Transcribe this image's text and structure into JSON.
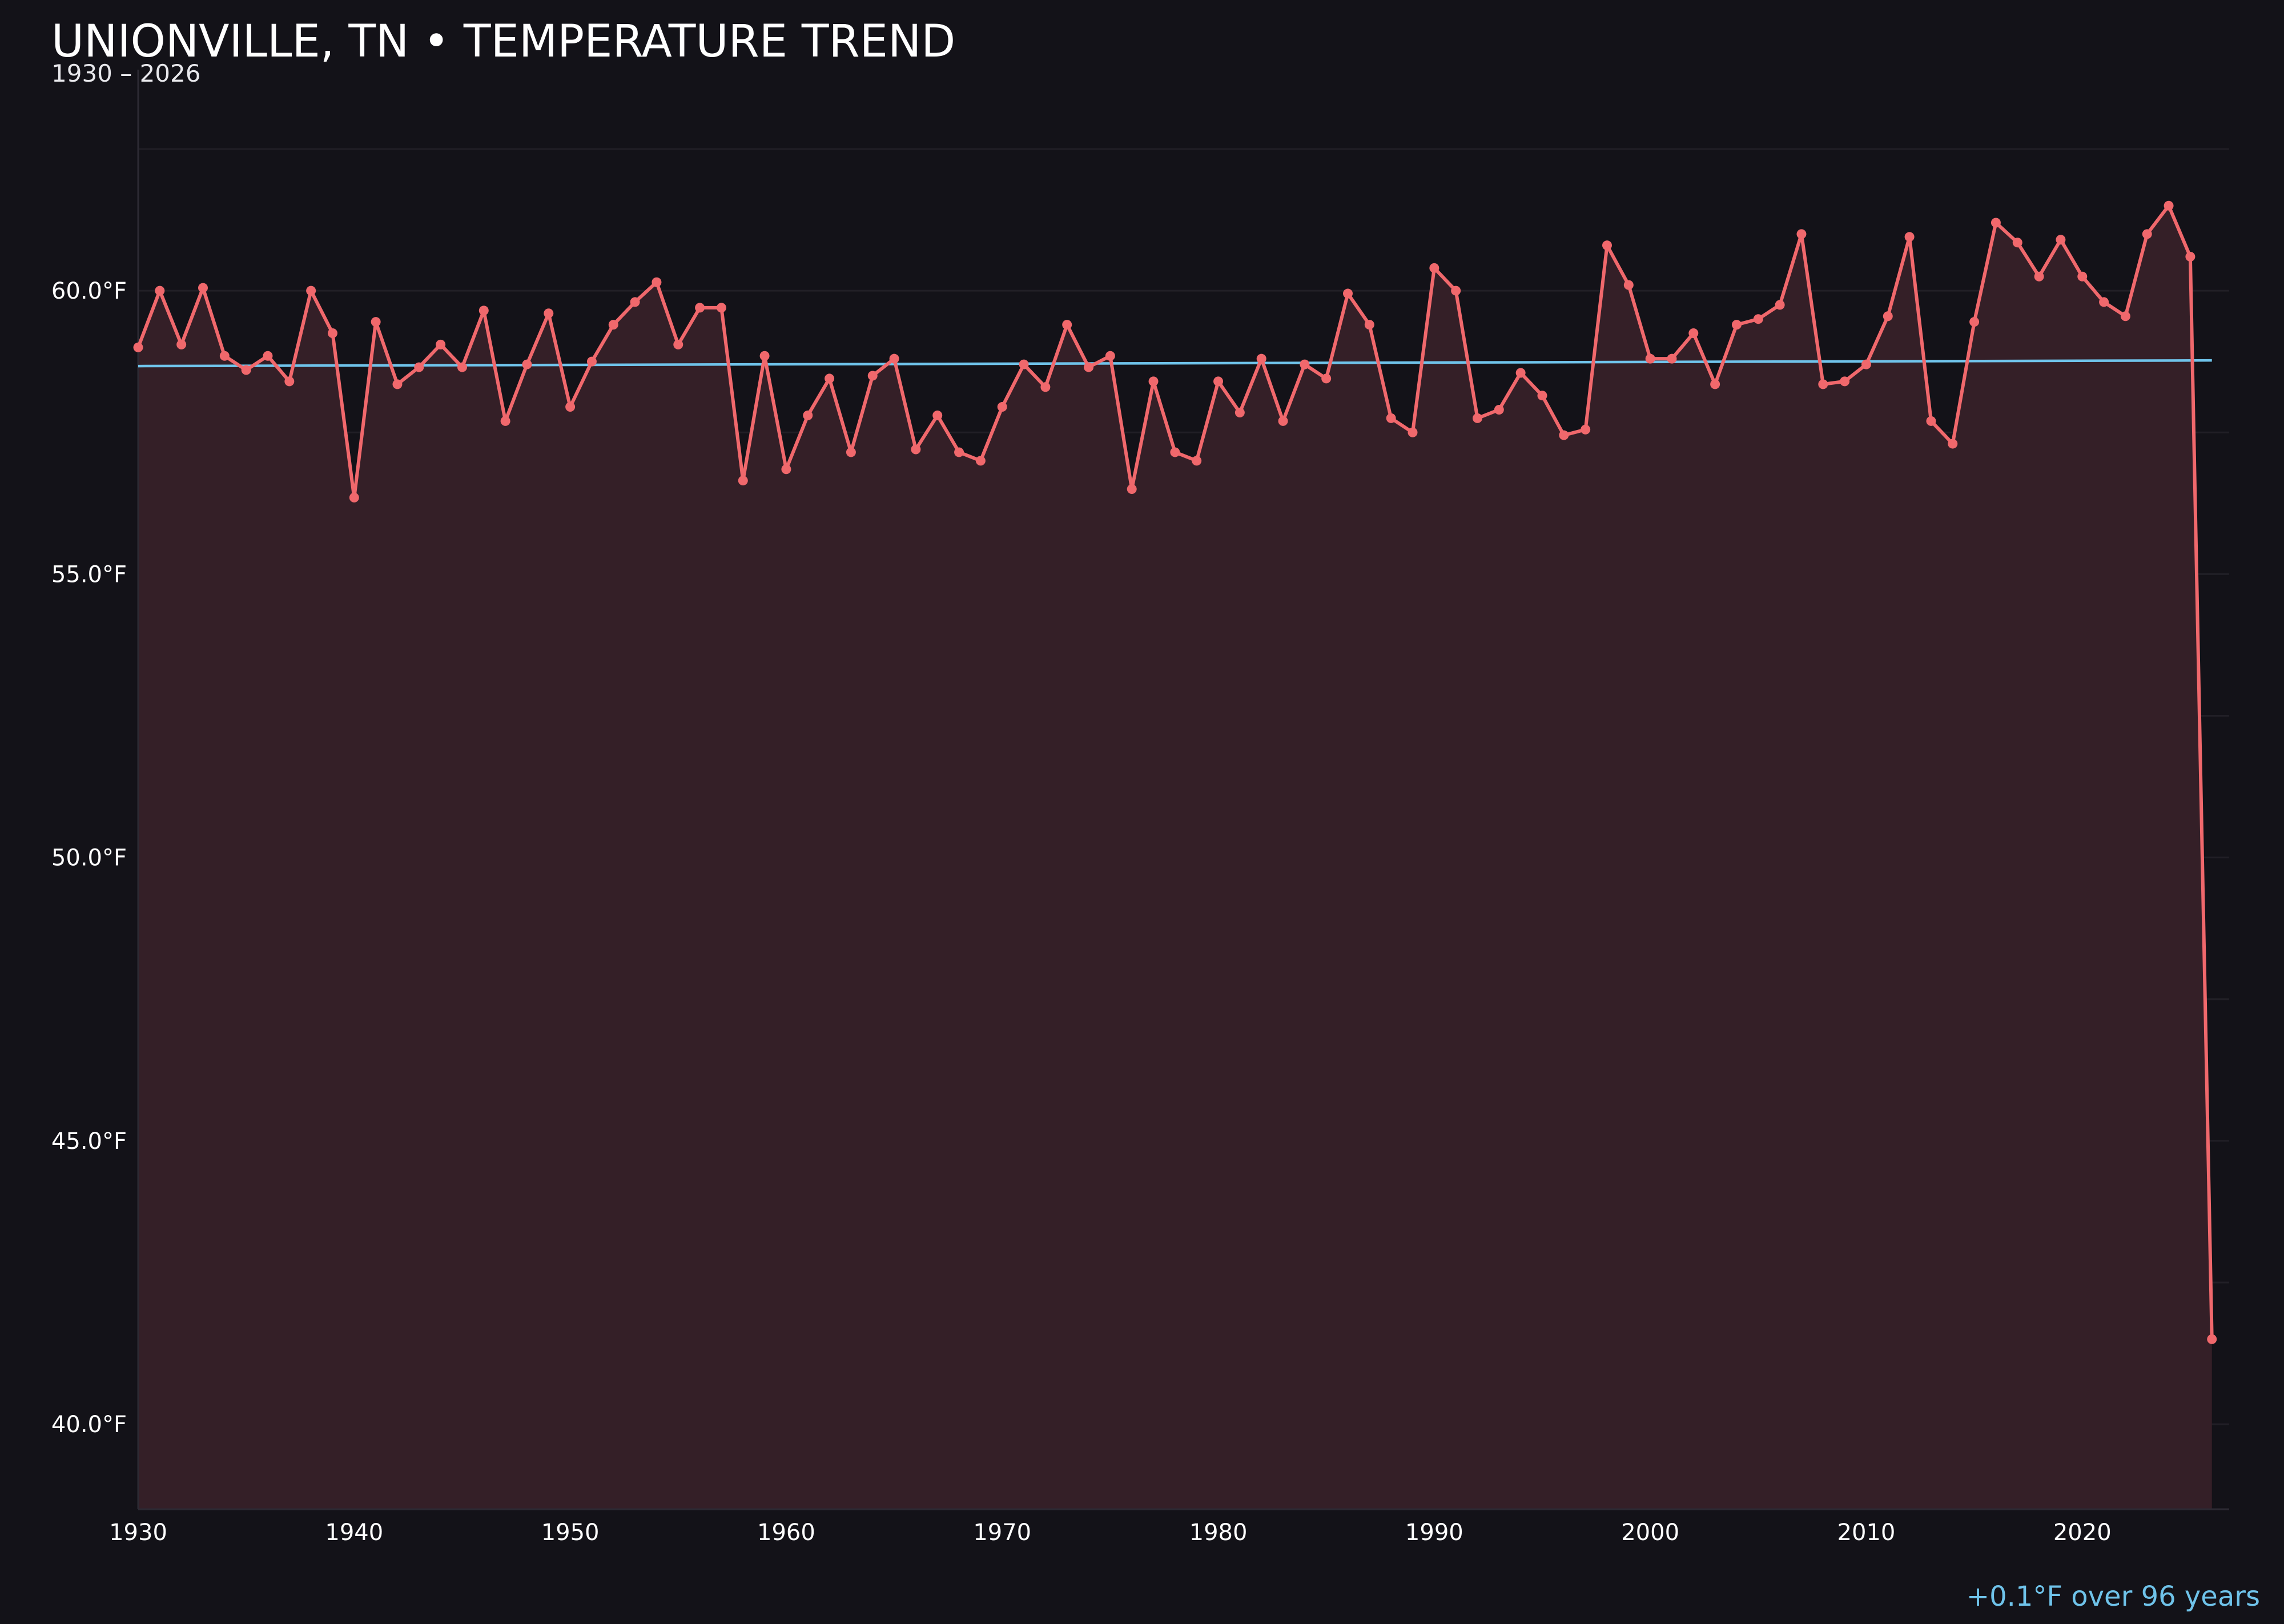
{
  "chart_data": {
    "type": "line",
    "title": "UNIONVILLE, TN • TEMPERATURE TREND",
    "subtitle": "1930 – 2026",
    "xlabel": "",
    "ylabel": "",
    "x_ticks": [
      "1930",
      "1940",
      "1950",
      "1960",
      "1970",
      "1980",
      "1990",
      "2000",
      "2010",
      "2020"
    ],
    "y_ticks": [
      "40.0°F",
      "45.0°F",
      "50.0°F",
      "55.0°F",
      "60.0°F"
    ],
    "xlim": [
      1930,
      2026.8
    ],
    "ylim": [
      38.5,
      63.9
    ],
    "grid": true,
    "x": [
      1930,
      1931,
      1932,
      1933,
      1934,
      1935,
      1936,
      1937,
      1938,
      1939,
      1940,
      1941,
      1942,
      1943,
      1944,
      1945,
      1946,
      1947,
      1948,
      1949,
      1950,
      1951,
      1952,
      1953,
      1954,
      1955,
      1956,
      1957,
      1958,
      1959,
      1960,
      1961,
      1962,
      1963,
      1964,
      1965,
      1966,
      1967,
      1968,
      1969,
      1970,
      1971,
      1972,
      1973,
      1974,
      1975,
      1976,
      1977,
      1978,
      1979,
      1980,
      1981,
      1982,
      1983,
      1984,
      1985,
      1986,
      1987,
      1988,
      1989,
      1990,
      1991,
      1992,
      1993,
      1994,
      1995,
      1996,
      1997,
      1998,
      1999,
      2000,
      2001,
      2002,
      2003,
      2004,
      2005,
      2006,
      2007,
      2008,
      2009,
      2010,
      2011,
      2012,
      2013,
      2014,
      2015,
      2016,
      2017,
      2018,
      2019,
      2020,
      2021,
      2022,
      2023,
      2024,
      2025,
      2026
    ],
    "series": [
      {
        "values": [
          59.0,
          60.0,
          59.05,
          60.05,
          58.85,
          58.6,
          58.85,
          58.4,
          60.0,
          59.25,
          56.35,
          59.45,
          58.35,
          58.65,
          59.05,
          58.65,
          59.65,
          57.7,
          58.7,
          59.6,
          57.95,
          58.75,
          59.4,
          59.8,
          60.15,
          59.05,
          59.7,
          59.7,
          56.65,
          58.85,
          56.85,
          57.8,
          58.45,
          57.15,
          58.5,
          58.8,
          57.2,
          57.8,
          57.15,
          57.0,
          57.95,
          58.7,
          58.3,
          59.4,
          58.65,
          58.85,
          56.5,
          58.4,
          57.15,
          57.0,
          58.4,
          57.85,
          58.8,
          57.7,
          58.7,
          58.45,
          59.95,
          59.4,
          57.75,
          57.5,
          60.4,
          60.0,
          57.75,
          57.9,
          58.55,
          58.15,
          57.45,
          57.55,
          60.8,
          60.1,
          58.8,
          58.8,
          59.25,
          58.35,
          59.4,
          59.5,
          59.75,
          61.0,
          58.35,
          58.4,
          58.7,
          59.55,
          60.95,
          57.7,
          57.3,
          59.45,
          61.2,
          60.85,
          60.25,
          60.9,
          60.25,
          59.8,
          59.55,
          61.0,
          61.5,
          60.6,
          41.5
        ],
        "color": "#f0686c"
      },
      {
        "name": "trend",
        "x": [
          1930,
          2026
        ],
        "values": [
          58.67,
          58.77
        ],
        "color": "#6fc3ea"
      }
    ],
    "annotation": "+0.1°F over 96 years"
  }
}
